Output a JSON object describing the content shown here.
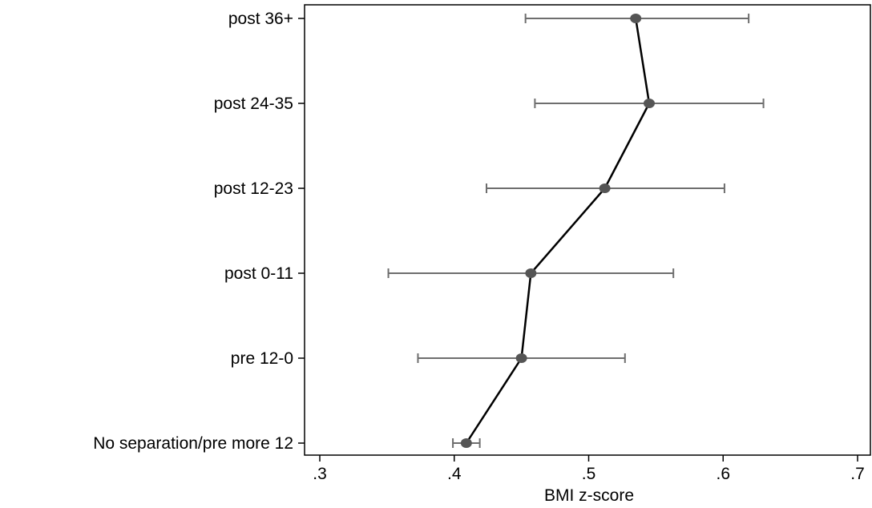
{
  "chart_data": {
    "type": "scatter",
    "orientation": "horizontal",
    "xlabel": "BMI z-score",
    "ylabel": "",
    "title": "",
    "xlim": [
      0.3,
      0.7
    ],
    "xticks": [
      {
        "value": 0.3,
        "label": ".3"
      },
      {
        "value": 0.4,
        "label": ".4"
      },
      {
        "value": 0.5,
        "label": ".5"
      },
      {
        "value": 0.6,
        "label": ".6"
      },
      {
        "value": 0.7,
        "label": ".7"
      }
    ],
    "grid": false,
    "categories": [
      "post 36+",
      "post 24-35",
      "post 12-23",
      "post 0-11",
      "pre 12-0",
      "No separation/pre more 12"
    ],
    "estimates": [
      0.535,
      0.545,
      0.512,
      0.457,
      0.45,
      0.409
    ],
    "ci_lower": [
      0.453,
      0.46,
      0.424,
      0.351,
      0.373,
      0.399
    ],
    "ci_upper": [
      0.619,
      0.63,
      0.601,
      0.563,
      0.527,
      0.419
    ],
    "connect_points": true,
    "colors": {
      "point": "#555555",
      "errorbar": "#6e6e6e",
      "line": "#000000",
      "axis": "#000000"
    }
  }
}
